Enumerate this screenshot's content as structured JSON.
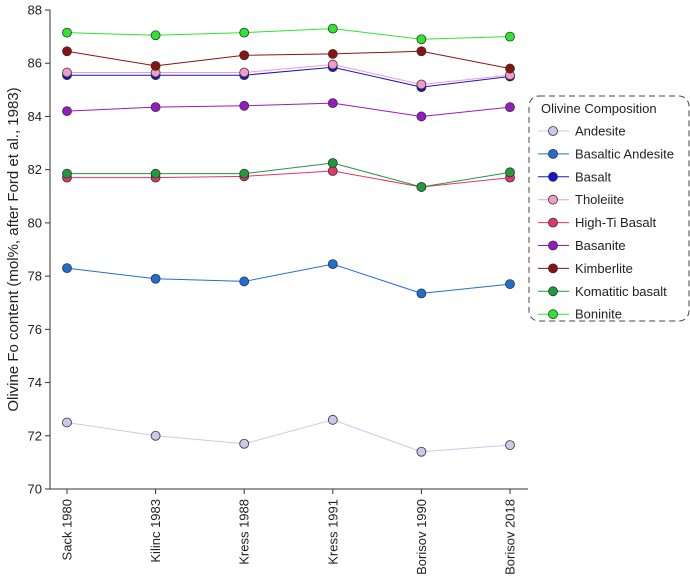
{
  "chart_data": {
    "type": "line",
    "title": "",
    "xlabel": "",
    "ylabel": "Olivine Fo content  (mol%, after Ford et al., 1983)",
    "categories": [
      "Sack 1980",
      "Kilinc 1983",
      "Kress 1988",
      "Kress 1991",
      "Borisov 1990",
      "Borisov 2018"
    ],
    "ylim": [
      70,
      88
    ],
    "yticks": [
      70,
      72,
      74,
      76,
      78,
      80,
      82,
      84,
      86,
      88
    ],
    "grid": false,
    "legend": {
      "title": "Olivine Composition",
      "placement": "right"
    },
    "series": [
      {
        "name": "Andesite",
        "color": "#c9c9ec",
        "values": [
          72.5,
          72.0,
          71.7,
          72.6,
          71.4,
          71.65
        ]
      },
      {
        "name": "Basaltic Andesite",
        "color": "#1f6fd1",
        "values": [
          78.3,
          77.9,
          77.8,
          78.45,
          77.35,
          77.7
        ]
      },
      {
        "name": "Basalt",
        "color": "#1515d6",
        "values": [
          85.55,
          85.55,
          85.55,
          85.85,
          85.1,
          85.5
        ]
      },
      {
        "name": "Tholeiite",
        "color": "#f49ac8",
        "values": [
          85.65,
          85.65,
          85.65,
          85.95,
          85.2,
          85.55
        ]
      },
      {
        "name": "High-Ti Basalt",
        "color": "#e5336b",
        "values": [
          81.7,
          81.7,
          81.75,
          81.95,
          81.35,
          81.7
        ]
      },
      {
        "name": "Basanite",
        "color": "#9a19c4",
        "values": [
          84.2,
          84.35,
          84.4,
          84.5,
          84.0,
          84.35
        ]
      },
      {
        "name": "Kimberlite",
        "color": "#8c1212",
        "values": [
          86.45,
          85.9,
          86.3,
          86.35,
          86.45,
          85.8
        ]
      },
      {
        "name": "Komatitic basalt",
        "color": "#1f9a3c",
        "values": [
          81.85,
          81.85,
          81.85,
          82.25,
          81.35,
          81.9
        ]
      },
      {
        "name": "Boninite",
        "color": "#2ee62e",
        "values": [
          87.15,
          87.05,
          87.15,
          87.3,
          86.9,
          87.0
        ]
      }
    ]
  }
}
